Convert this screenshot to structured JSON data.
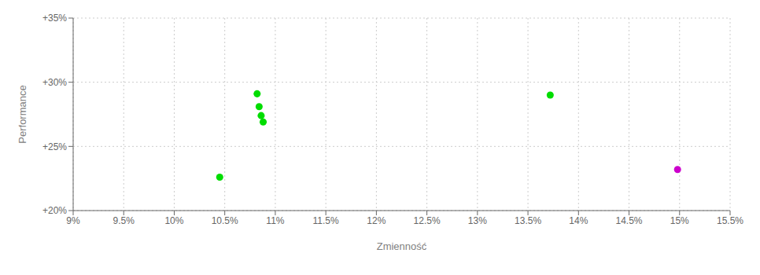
{
  "chart_data": {
    "type": "scatter",
    "x_label": "Zmienność",
    "y_label": "Performance",
    "xlim": [
      0.09,
      0.155
    ],
    "ylim": [
      0.2,
      0.35
    ],
    "xticks": [
      {
        "value": 0.09,
        "label": "9%"
      },
      {
        "value": 0.095,
        "label": "9.5%"
      },
      {
        "value": 0.1,
        "label": "10%"
      },
      {
        "value": 0.105,
        "label": "10.5%"
      },
      {
        "value": 0.11,
        "label": "11%"
      },
      {
        "value": 0.115,
        "label": "11.5%"
      },
      {
        "value": 0.12,
        "label": "12%"
      },
      {
        "value": 0.125,
        "label": "12.5%"
      },
      {
        "value": 0.13,
        "label": "13%"
      },
      {
        "value": 0.135,
        "label": "13.5%"
      },
      {
        "value": 0.14,
        "label": "14%"
      },
      {
        "value": 0.145,
        "label": "14.5%"
      },
      {
        "value": 0.15,
        "label": "15%"
      },
      {
        "value": 0.155,
        "label": "15.5%"
      }
    ],
    "yticks": [
      {
        "value": 0.2,
        "label": "+20%"
      },
      {
        "value": 0.25,
        "label": "+25%"
      },
      {
        "value": 0.3,
        "label": "+30%"
      },
      {
        "value": 0.35,
        "label": "+35%"
      }
    ],
    "grid": true,
    "series": [
      {
        "color": "#00dd00",
        "x": [
          0.1045,
          0.1082,
          0.1084,
          0.1086,
          0.1088,
          0.1372
        ],
        "values": [
          0.226,
          0.291,
          0.281,
          0.274,
          0.269,
          0.29
        ]
      },
      {
        "color": "#cc00cc",
        "x": [
          0.1498
        ],
        "values": [
          0.232
        ]
      }
    ]
  }
}
